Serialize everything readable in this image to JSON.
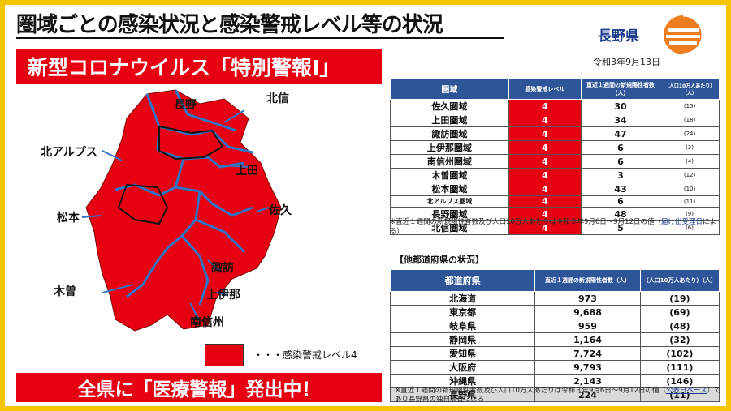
{
  "title": "圏域ごとの感染状況と感染警戒レベル等の状況",
  "banner_top": "新型コロナウイルス「特別警報Ⅰ」",
  "banner_bottom": "全県に「医療警報」発出中！",
  "prefecture": "長野県",
  "date": "令和3年9月13日",
  "colors": {
    "alert_red": "#e60012",
    "header_blue": "#2e5597",
    "frame_yellow": "#f5c400",
    "logo_orange": "#ee7d1f"
  },
  "map": {
    "labels": {
      "nagano": "長野",
      "hokushin": "北信",
      "kita_alps": "北アルプス",
      "ueda": "上田",
      "matsumoto": "松本",
      "saku": "佐久",
      "suwa": "諏訪",
      "kiso": "木曽",
      "kamiina": "上伊那",
      "minamishinshu": "南信州"
    },
    "legend": "・・・感染警戒レベル4"
  },
  "regions_table": {
    "headers": [
      "圏域",
      "感染警戒レベル",
      "直近１週間の新規陽性者数（人）",
      "（人口10万人あたり）（人）"
    ],
    "rows": [
      {
        "name": "佐久圏域",
        "level": "4",
        "cases": "30",
        "per100k": "(15)"
      },
      {
        "name": "上田圏域",
        "level": "4",
        "cases": "34",
        "per100k": "(18)"
      },
      {
        "name": "諏訪圏域",
        "level": "4",
        "cases": "47",
        "per100k": "(24)"
      },
      {
        "name": "上伊那圏域",
        "level": "4",
        "cases": "6",
        "per100k": "(3)"
      },
      {
        "name": "南信州圏域",
        "level": "4",
        "cases": "6",
        "per100k": "(4)"
      },
      {
        "name": "木曽圏域",
        "level": "4",
        "cases": "3",
        "per100k": "(12)"
      },
      {
        "name": "松本圏域",
        "level": "4",
        "cases": "43",
        "per100k": "(10)"
      },
      {
        "name": "北アルプス圏域",
        "level": "4",
        "cases": "6",
        "per100k": "(11)"
      },
      {
        "name": "長野圏域",
        "level": "4",
        "cases": "48",
        "per100k": "(9)"
      },
      {
        "name": "北信圏域",
        "level": "4",
        "cases": "5",
        "per100k": "(6)"
      }
    ],
    "note_a": "※直近１週間の新規陽性者数及び人口10万人あたりは令和３年9月6日～9月12日の値（",
    "note_link": "届け出受理日",
    "note_b": "による）"
  },
  "other_heading": "【他都道府県の状況】",
  "pref_table": {
    "headers": [
      "都道府県",
      "直近１週間の新規陽性者数（人）",
      "（人口10万人あたり）（人）"
    ],
    "rows": [
      {
        "name": "北海道",
        "cases": "973",
        "per100k": "(19)"
      },
      {
        "name": "東京都",
        "cases": "9,688",
        "per100k": "(69)"
      },
      {
        "name": "岐阜県",
        "cases": "959",
        "per100k": "(48)"
      },
      {
        "name": "静岡県",
        "cases": "1,164",
        "per100k": "(32)"
      },
      {
        "name": "愛知県",
        "cases": "7,724",
        "per100k": "(102)"
      },
      {
        "name": "大阪府",
        "cases": "9,793",
        "per100k": "(111)"
      },
      {
        "name": "沖縄県",
        "cases": "2,143",
        "per100k": "(146)"
      },
      {
        "name": "長野県",
        "cases": "224",
        "per100k": "(11)"
      }
    ],
    "note_a": "※直近１週間の新規陽性者数及び人口10万人あたりは令和３年9月6日～9月12日の値（",
    "note_link": "公表日ベース",
    "note_b": "）であり長野県の独自調査による"
  }
}
